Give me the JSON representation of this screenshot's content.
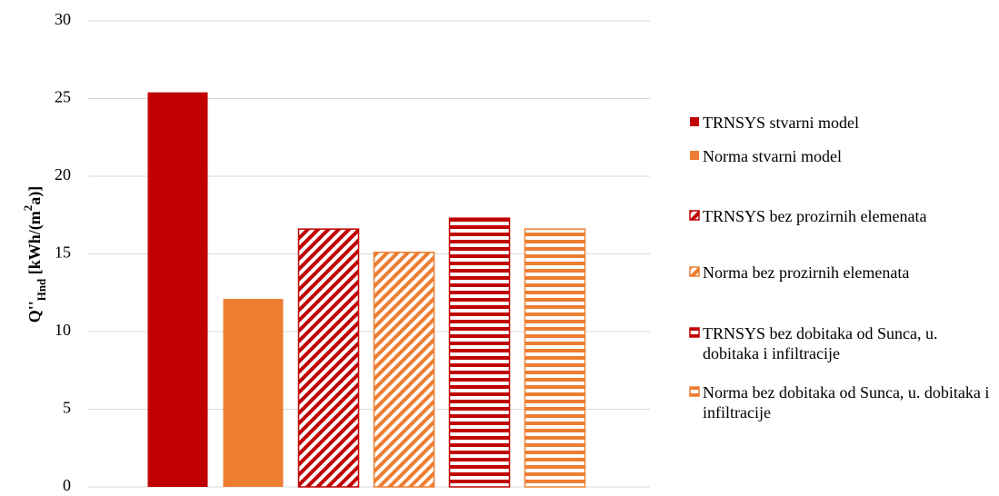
{
  "chart_data": {
    "type": "bar",
    "y_label": [
      "Q''",
      "Hnd",
      " [kWh/(m",
      "2",
      "a)]"
    ],
    "categories": [
      null
    ],
    "series": [
      {
        "name": "TRNSYS stvarni model",
        "color": "#c00000",
        "pattern": "solid",
        "values": [
          25.4
        ]
      },
      {
        "name": "Norma stvarni model",
        "color": "#ed7d31",
        "pattern": "solid",
        "values": [
          12.1
        ]
      },
      {
        "name": "TRNSYS bez prozirnih elemenata",
        "color": "#c00000",
        "pattern": "diagonal",
        "values": [
          16.6
        ]
      },
      {
        "name": "Norma bez prozirnih elemenata",
        "color": "#ed7d31",
        "pattern": "diagonal",
        "values": [
          15.1
        ]
      },
      {
        "name": "TRNSYS bez dobitaka od Sunca, u. dobitaka i infiltracije",
        "color": "#c00000",
        "pattern": "horizontal",
        "values": [
          17.3
        ]
      },
      {
        "name": "Norma bez dobitaka od Sunca, u. dobitaka i infiltracije",
        "color": "#ed7d31",
        "pattern": "horizontal",
        "values": [
          16.6
        ]
      }
    ],
    "ylim": [
      0,
      30
    ],
    "yticks": [
      0,
      5,
      10,
      15,
      20,
      25,
      30
    ],
    "grid": true,
    "legend": "right"
  }
}
